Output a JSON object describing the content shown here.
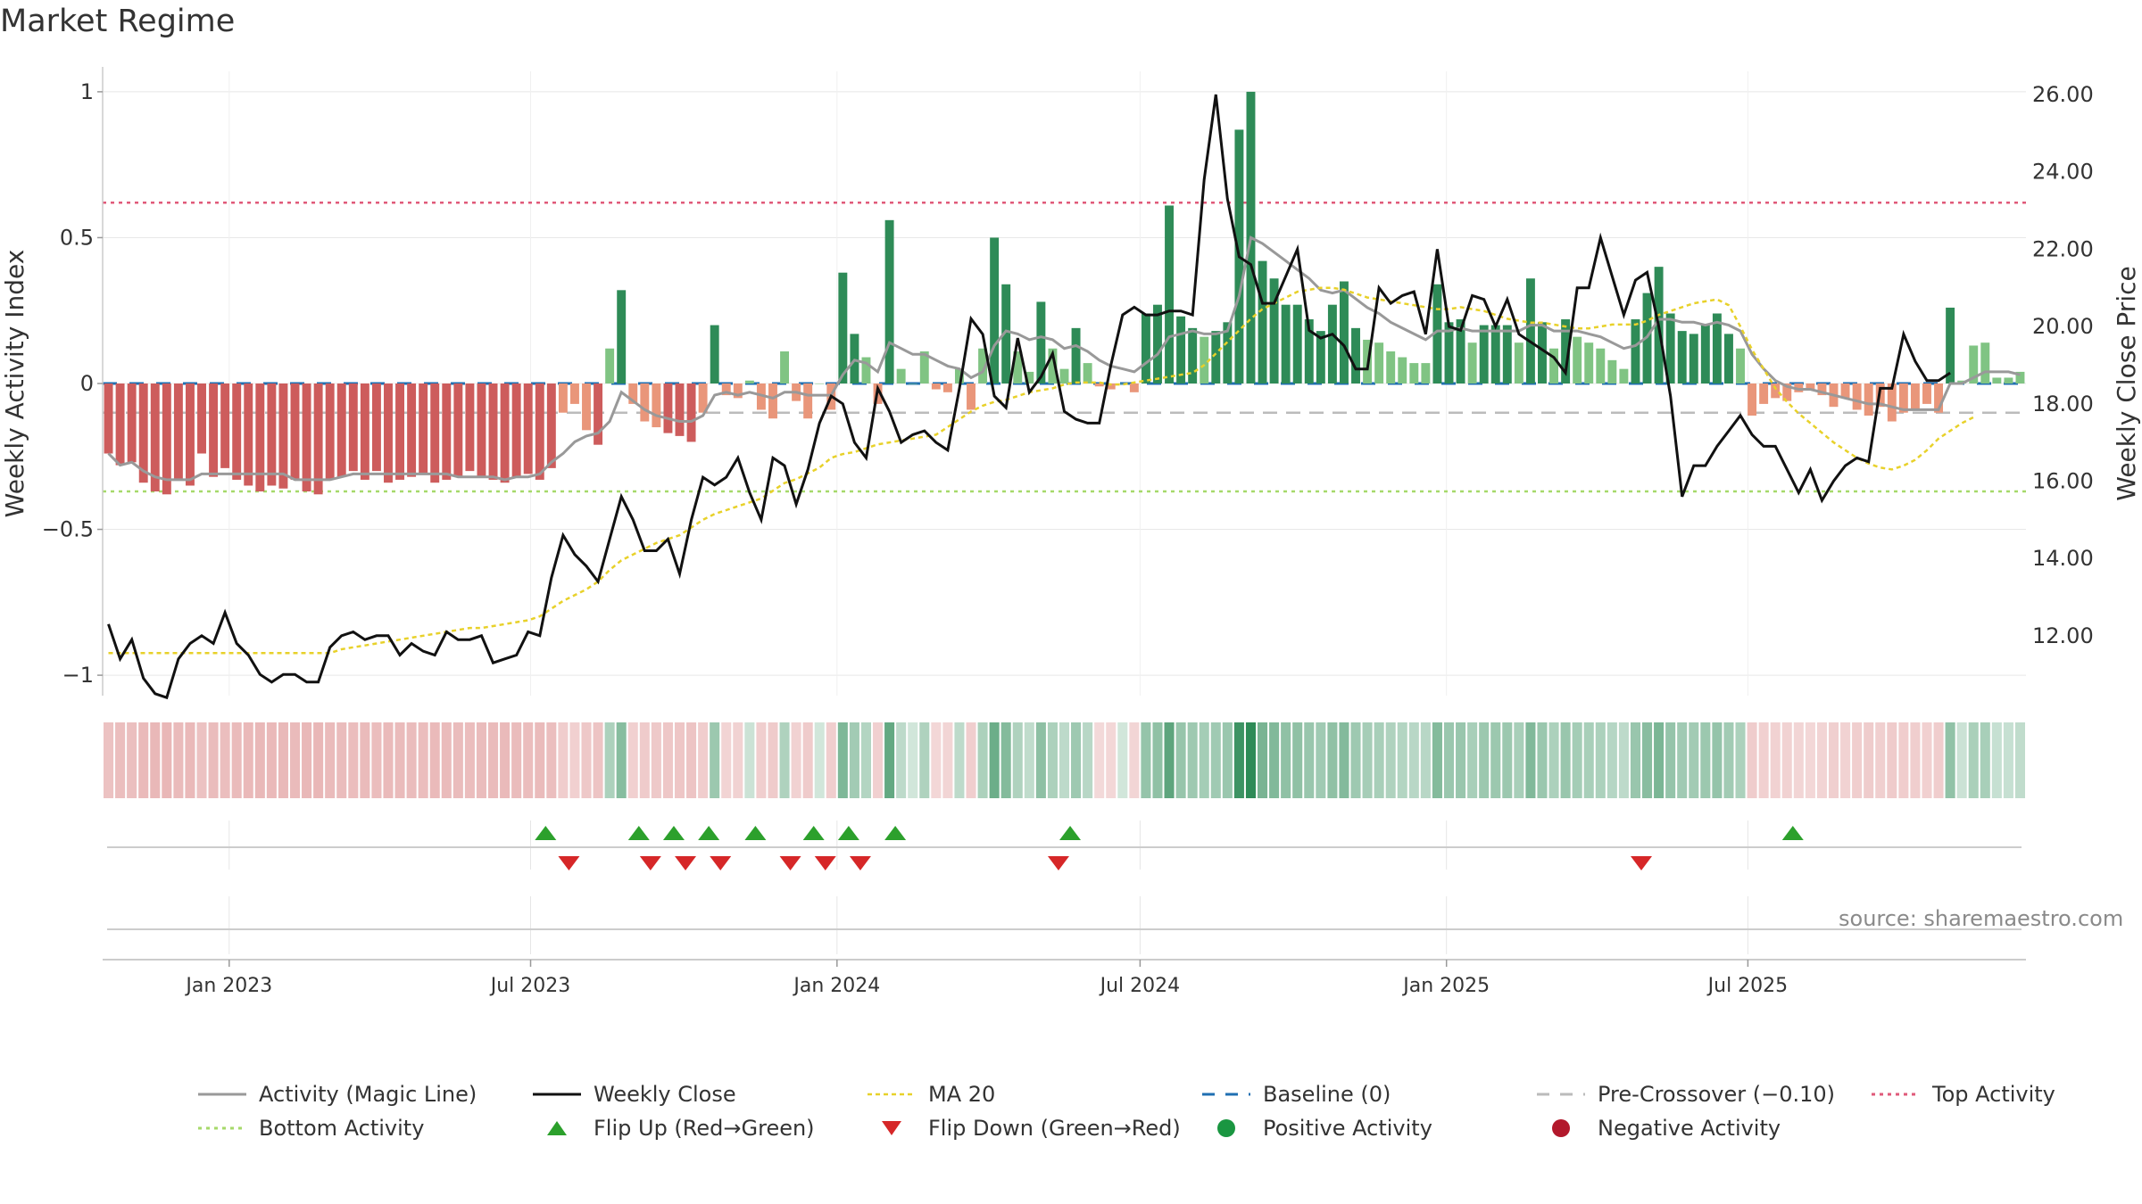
{
  "title": "Market Regime",
  "source": "source: sharemaestro.com",
  "colors": {
    "pos_strong": "#2e8b57",
    "pos_light": "#80c483",
    "neg_strong": "#cd5c5c",
    "neg_light": "#e9967a",
    "magic": "#999999",
    "close": "#111111",
    "ma": "#e8d12a",
    "baseline": "#1f6fb2",
    "precross": "#bbbbbb",
    "top": "#e05a7a",
    "bottom": "#a6d96a",
    "flip_up": "#2ca02c",
    "flip_down": "#d62728",
    "grid": "#e8e8e8"
  },
  "chart_data": {
    "type": "bar",
    "title": "Market Regime",
    "ylabel": "Weekly Activity Index",
    "y2label": "Weekly Close Price",
    "ylim": [
      -1.07,
      1.07
    ],
    "y2lim": [
      10.45,
      26.6
    ],
    "yticks": [
      {
        "v": 1,
        "label": "1"
      },
      {
        "v": 0.5,
        "label": "0.5"
      },
      {
        "v": 0,
        "label": "0"
      },
      {
        "v": -0.5,
        "label": "−0.5"
      },
      {
        "v": -1,
        "label": "−1"
      }
    ],
    "y2ticks": [
      "12.00",
      "14.00",
      "16.00",
      "18.00",
      "20.00",
      "22.00",
      "24.00",
      "26.00"
    ],
    "x_start": "2022-10-17",
    "xticks": [
      {
        "date": "2023-01-01",
        "label": "Jan 2023"
      },
      {
        "date": "2023-07-01",
        "label": "Jul 2023"
      },
      {
        "date": "2024-01-01",
        "label": "Jan 2024"
      },
      {
        "date": "2024-07-01",
        "label": "Jul 2024"
      },
      {
        "date": "2025-01-01",
        "label": "Jan 2025"
      },
      {
        "date": "2025-07-01",
        "label": "Jul 2025"
      }
    ],
    "reference_lines": {
      "baseline": 0,
      "pre_crossover": -0.1,
      "top_activity": 0.62,
      "bottom_activity": -0.37
    },
    "activity": [
      -0.24,
      -0.28,
      -0.27,
      -0.34,
      -0.37,
      -0.38,
      -0.33,
      -0.35,
      -0.24,
      -0.32,
      -0.29,
      -0.33,
      -0.35,
      -0.37,
      -0.35,
      -0.36,
      -0.33,
      -0.37,
      -0.38,
      -0.33,
      -0.32,
      -0.3,
      -0.33,
      -0.3,
      -0.34,
      -0.33,
      -0.32,
      -0.31,
      -0.34,
      -0.33,
      -0.32,
      -0.3,
      -0.32,
      -0.33,
      -0.34,
      -0.32,
      -0.31,
      -0.33,
      -0.29,
      -0.1,
      -0.07,
      -0.16,
      -0.21,
      0.12,
      0.32,
      -0.07,
      -0.13,
      -0.15,
      -0.17,
      -0.18,
      -0.2,
      -0.1,
      0.2,
      -0.04,
      -0.05,
      0.01,
      -0.09,
      -0.12,
      0.11,
      -0.06,
      -0.12,
      0.0,
      -0.09,
      0.38,
      0.17,
      0.09,
      -0.07,
      0.56,
      0.05,
      0.0,
      0.11,
      -0.02,
      -0.03,
      0.05,
      -0.09,
      0.12,
      0.5,
      0.34,
      0.11,
      0.04,
      0.28,
      0.12,
      0.05,
      0.19,
      0.07,
      -0.01,
      -0.02,
      0.0,
      -0.03,
      0.24,
      0.27,
      0.61,
      0.23,
      0.19,
      0.16,
      0.18,
      0.21,
      0.87,
      1.0,
      0.42,
      0.36,
      0.27,
      0.27,
      0.22,
      0.18,
      0.27,
      0.35,
      0.19,
      0.15,
      0.14,
      0.11,
      0.09,
      0.07,
      0.07,
      0.34,
      0.21,
      0.22,
      0.14,
      0.2,
      0.2,
      0.2,
      0.14,
      0.36,
      0.21,
      0.12,
      0.22,
      0.16,
      0.14,
      0.12,
      0.08,
      0.05,
      0.22,
      0.31,
      0.4,
      0.24,
      0.18,
      0.17,
      0.2,
      0.24,
      0.17,
      0.12,
      -0.11,
      -0.07,
      -0.05,
      -0.06,
      -0.03,
      -0.02,
      -0.04,
      -0.08,
      -0.05,
      -0.09,
      -0.11,
      -0.08,
      -0.13,
      -0.1,
      -0.09,
      -0.07,
      -0.1,
      0.26,
      0.01,
      0.13,
      0.14,
      0.02,
      0.02,
      0.04
    ],
    "magic_line": [
      -0.24,
      -0.28,
      -0.27,
      -0.3,
      -0.32,
      -0.33,
      -0.33,
      -0.33,
      -0.31,
      -0.31,
      -0.31,
      -0.31,
      -0.31,
      -0.31,
      -0.31,
      -0.31,
      -0.33,
      -0.33,
      -0.33,
      -0.33,
      -0.32,
      -0.31,
      -0.31,
      -0.31,
      -0.31,
      -0.31,
      -0.31,
      -0.31,
      -0.31,
      -0.31,
      -0.32,
      -0.32,
      -0.32,
      -0.32,
      -0.33,
      -0.32,
      -0.32,
      -0.31,
      -0.27,
      -0.24,
      -0.2,
      -0.18,
      -0.17,
      -0.13,
      -0.03,
      -0.06,
      -0.09,
      -0.11,
      -0.12,
      -0.13,
      -0.13,
      -0.11,
      -0.04,
      -0.03,
      -0.04,
      -0.03,
      -0.04,
      -0.05,
      -0.03,
      -0.03,
      -0.04,
      -0.04,
      -0.04,
      0.03,
      0.08,
      0.07,
      0.04,
      0.14,
      0.12,
      0.1,
      0.1,
      0.08,
      0.06,
      0.05,
      0.02,
      0.04,
      0.13,
      0.18,
      0.17,
      0.15,
      0.16,
      0.15,
      0.12,
      0.13,
      0.11,
      0.08,
      0.06,
      0.05,
      0.04,
      0.07,
      0.1,
      0.16,
      0.17,
      0.18,
      0.17,
      0.17,
      0.18,
      0.3,
      0.5,
      0.48,
      0.45,
      0.42,
      0.39,
      0.36,
      0.32,
      0.31,
      0.32,
      0.29,
      0.26,
      0.24,
      0.21,
      0.19,
      0.17,
      0.15,
      0.18,
      0.18,
      0.19,
      0.18,
      0.18,
      0.18,
      0.18,
      0.18,
      0.2,
      0.2,
      0.18,
      0.18,
      0.18,
      0.17,
      0.16,
      0.14,
      0.12,
      0.13,
      0.16,
      0.22,
      0.22,
      0.21,
      0.21,
      0.2,
      0.21,
      0.2,
      0.18,
      0.1,
      0.05,
      0.01,
      -0.01,
      -0.02,
      -0.02,
      -0.03,
      -0.04,
      -0.05,
      -0.06,
      -0.07,
      -0.07,
      -0.08,
      -0.09,
      -0.09,
      -0.09,
      -0.09,
      0.0,
      0.0,
      0.02,
      0.04,
      0.04,
      0.04,
      0.03
    ],
    "weekly_close": [
      12.3,
      11.4,
      11.9,
      10.9,
      10.5,
      10.4,
      11.4,
      11.8,
      12.0,
      11.8,
      12.6,
      11.8,
      11.5,
      11.0,
      10.8,
      11.0,
      11.0,
      10.8,
      10.8,
      11.7,
      12.0,
      12.1,
      11.9,
      12.0,
      12.0,
      11.5,
      11.8,
      11.6,
      11.5,
      12.1,
      11.9,
      11.9,
      12.0,
      11.3,
      11.4,
      11.5,
      12.1,
      12.0,
      13.5,
      14.6,
      14.1,
      13.8,
      13.4,
      14.5,
      15.6,
      15.0,
      14.2,
      14.2,
      14.5,
      13.6,
      15.0,
      16.1,
      15.9,
      16.1,
      16.6,
      15.7,
      15.0,
      16.6,
      16.4,
      15.4,
      16.3,
      17.5,
      18.2,
      18.0,
      17.0,
      16.6,
      18.4,
      17.8,
      17.0,
      17.2,
      17.3,
      17.0,
      16.8,
      18.4,
      20.2,
      19.8,
      18.2,
      17.9,
      19.7,
      18.3,
      18.7,
      19.3,
      17.8,
      17.6,
      17.5,
      17.5,
      19.0,
      20.3,
      20.5,
      20.3,
      20.3,
      20.4,
      20.4,
      20.3,
      23.8,
      26.0,
      23.3,
      21.8,
      21.6,
      20.6,
      20.6,
      21.3,
      22.0,
      19.9,
      19.7,
      19.8,
      19.5,
      18.9,
      18.9,
      21.0,
      20.6,
      20.8,
      20.9,
      19.8,
      22.0,
      20.0,
      19.9,
      20.8,
      20.7,
      20.0,
      20.7,
      19.8,
      19.6,
      19.4,
      19.2,
      18.8,
      21.0,
      21.0,
      22.3,
      21.3,
      20.3,
      21.2,
      21.4,
      20.0,
      18.2,
      15.6,
      16.4,
      16.4,
      16.9,
      17.3,
      17.7,
      17.2,
      16.9,
      16.9,
      16.3,
      15.7,
      16.3,
      15.5,
      16.0,
      16.4,
      16.6,
      16.5,
      18.4,
      18.4,
      19.8,
      19.1,
      18.6,
      18.6,
      18.8
    ],
    "ma20": [
      11.55,
      11.55,
      11.55,
      11.55,
      11.55,
      11.55,
      11.55,
      11.55,
      11.55,
      11.55,
      11.55,
      11.55,
      11.55,
      11.55,
      11.55,
      11.55,
      11.55,
      11.55,
      11.55,
      11.55,
      11.65,
      11.7,
      11.75,
      11.8,
      11.85,
      11.9,
      11.95,
      12.0,
      12.05,
      12.1,
      12.15,
      12.2,
      12.2,
      12.25,
      12.3,
      12.35,
      12.4,
      12.5,
      12.7,
      12.9,
      13.05,
      13.2,
      13.4,
      13.7,
      13.95,
      14.1,
      14.25,
      14.4,
      14.5,
      14.6,
      14.8,
      15.0,
      15.15,
      15.25,
      15.35,
      15.45,
      15.55,
      15.75,
      15.95,
      16.05,
      16.2,
      16.35,
      16.6,
      16.7,
      16.75,
      16.85,
      16.95,
      17.0,
      17.05,
      17.1,
      17.15,
      17.2,
      17.4,
      17.6,
      17.8,
      17.95,
      18.05,
      18.1,
      18.2,
      18.3,
      18.35,
      18.4,
      18.5,
      18.55,
      18.55,
      18.55,
      18.5,
      18.5,
      18.55,
      18.6,
      18.65,
      18.7,
      18.75,
      18.8,
      19.0,
      19.3,
      19.6,
      19.9,
      20.2,
      20.45,
      20.6,
      20.75,
      20.9,
      20.95,
      21.0,
      21.0,
      20.95,
      20.85,
      20.75,
      20.7,
      20.65,
      20.6,
      20.55,
      20.5,
      20.45,
      20.45,
      20.5,
      20.45,
      20.4,
      20.3,
      20.2,
      20.15,
      20.1,
      20.1,
      20.05,
      20.0,
      19.95,
      19.95,
      20.0,
      20.05,
      20.05,
      20.05,
      20.15,
      20.3,
      20.4,
      20.5,
      20.6,
      20.65,
      20.7,
      20.55,
      20.0,
      19.4,
      18.9,
      18.4,
      18.05,
      17.75,
      17.5,
      17.25,
      17.0,
      16.8,
      16.6,
      16.45,
      16.35,
      16.3,
      16.4,
      16.55,
      16.8,
      17.1,
      17.3,
      17.5,
      17.65
    ],
    "flip_up_dates": [
      "2023-07-10",
      "2023-09-04",
      "2023-09-25",
      "2023-10-16",
      "2023-11-13",
      "2023-12-18",
      "2024-01-08",
      "2024-02-05",
      "2024-05-20",
      "2025-07-28"
    ],
    "flip_down_dates": [
      "2023-07-24",
      "2023-09-11",
      "2023-10-02",
      "2023-10-23",
      "2023-12-04",
      "2023-12-25",
      "2024-01-15",
      "2024-05-13",
      "2025-04-28"
    ]
  },
  "legend": [
    {
      "key": "magic",
      "label": "Activity (Magic Line)"
    },
    {
      "key": "close",
      "label": "Weekly Close"
    },
    {
      "key": "ma",
      "label": "MA 20"
    },
    {
      "key": "baseline",
      "label": "Baseline (0)"
    },
    {
      "key": "precross",
      "label": "Pre-Crossover (−0.10)"
    },
    {
      "key": "top",
      "label": "Top Activity"
    },
    {
      "key": "bottom",
      "label": "Bottom Activity"
    },
    {
      "key": "flip_up",
      "label": "Flip Up (Red→Green)"
    },
    {
      "key": "flip_down",
      "label": "Flip Down (Green→Red)"
    },
    {
      "key": "positive",
      "label": "Positive Activity"
    },
    {
      "key": "negative",
      "label": "Negative Activity"
    }
  ]
}
